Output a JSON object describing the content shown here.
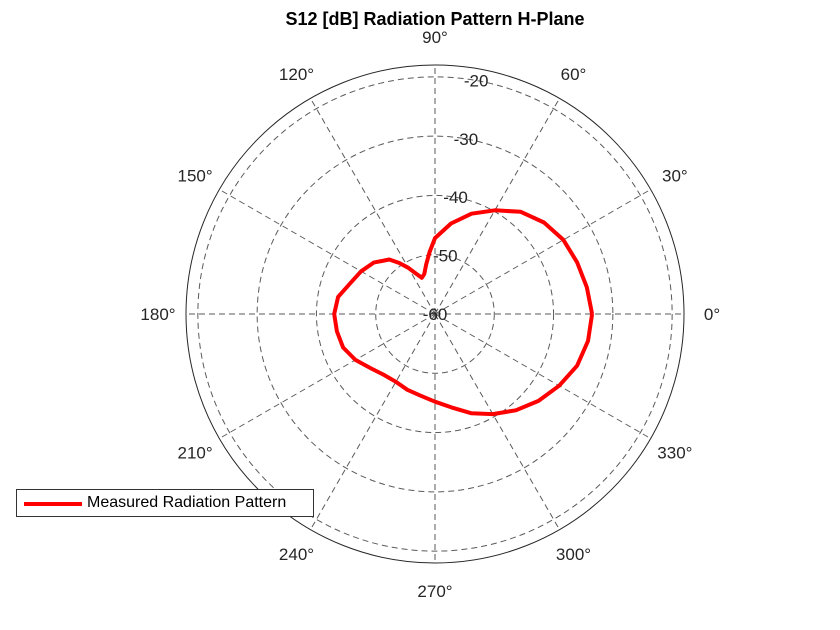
{
  "chart_data": {
    "type": "polar-line",
    "title": "S12 [dB] Radiation Pattern H-Plane",
    "theta_ticks": [
      0,
      30,
      60,
      90,
      120,
      150,
      180,
      210,
      240,
      270,
      300,
      330
    ],
    "theta_tick_labels": [
      "0°",
      "30°",
      "60°",
      "90°",
      "120°",
      "150°",
      "180°",
      "210°",
      "240°",
      "270°",
      "300°",
      "330°"
    ],
    "r_ticks": [
      -60,
      -50,
      -40,
      -30,
      -20
    ],
    "r_tick_labels": [
      "-60",
      "-50",
      "-40",
      "-30",
      "-20"
    ],
    "rlim": [
      -60,
      -18
    ],
    "grid": true,
    "legend_placement": "bottom-left",
    "series": [
      {
        "name": "Measured Radiation Pattern",
        "color": "#ff0000",
        "theta_deg": [
          0,
          10,
          20,
          30,
          40,
          50,
          60,
          70,
          80,
          90,
          95,
          100,
          105,
          110,
          115,
          120,
          125,
          130,
          140,
          150,
          160,
          170,
          180,
          190,
          200,
          210,
          220,
          230,
          240,
          250,
          260,
          270,
          280,
          290,
          300,
          310,
          320,
          330,
          340,
          350,
          360
        ],
        "r_db": [
          -33.5,
          -34.0,
          -34.5,
          -35.0,
          -36.0,
          -37.5,
          -39.8,
          -42.0,
          -44.5,
          -47.2,
          -49.5,
          -51.5,
          -53.0,
          -53.5,
          -52.5,
          -51.0,
          -49.5,
          -48.0,
          -46.5,
          -45.6,
          -44.8,
          -43.4,
          -43.0,
          -43.2,
          -43.5,
          -44.5,
          -45.8,
          -46.6,
          -46.8,
          -46.4,
          -46.0,
          -45.2,
          -44.0,
          -42.2,
          -40.5,
          -38.8,
          -37.2,
          -35.8,
          -34.5,
          -33.8,
          -33.5
        ]
      }
    ]
  }
}
